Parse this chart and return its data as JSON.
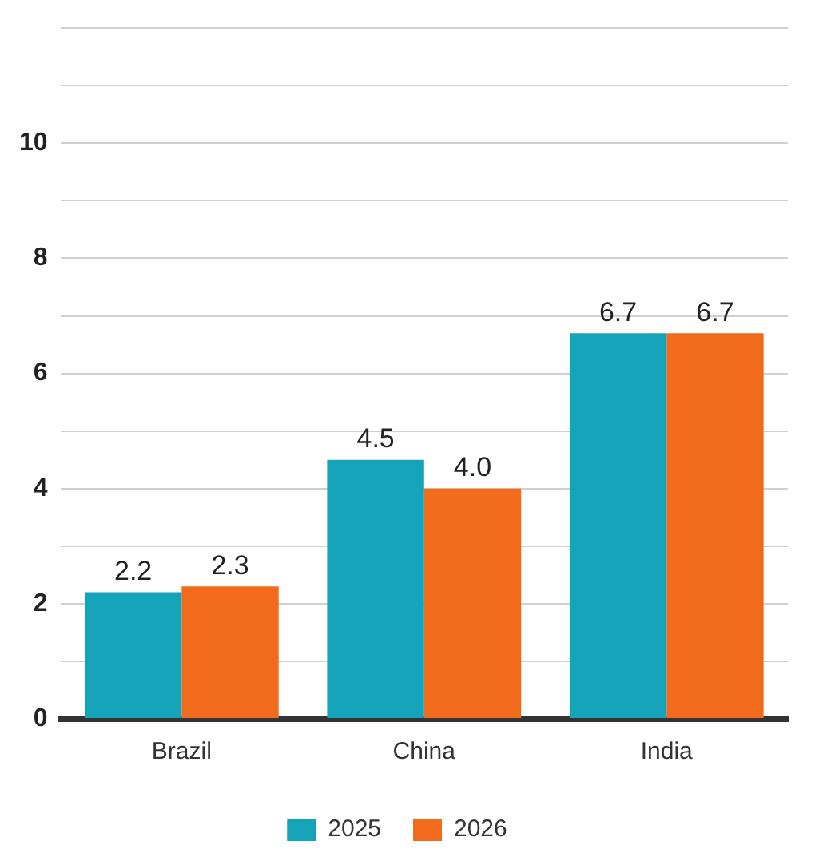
{
  "chart_data": {
    "type": "bar",
    "categories": [
      "Brazil",
      "China",
      "India"
    ],
    "series": [
      {
        "name": "2025",
        "color": "#14a3b8",
        "values": [
          2.2,
          4.5,
          6.7
        ],
        "value_labels": [
          "2.2",
          "4.5",
          "6.7"
        ]
      },
      {
        "name": "2026",
        "color": "#f26a1b",
        "values": [
          2.3,
          4.0,
          6.7
        ],
        "value_labels": [
          "2.3",
          "4.0",
          "6.7"
        ]
      }
    ],
    "ylim": [
      0,
      12
    ],
    "yticks": [
      0,
      {
        "value": 1,
        "label": null
      },
      2,
      {
        "value": 3,
        "label": null
      },
      4,
      {
        "value": 5,
        "label": null
      },
      6,
      {
        "value": 7,
        "label": null
      },
      8,
      {
        "value": 9,
        "label": null
      },
      10,
      {
        "value": 11,
        "label": null
      },
      {
        "value": 12,
        "label": null
      }
    ],
    "grid": "y",
    "legend": "bottom"
  }
}
